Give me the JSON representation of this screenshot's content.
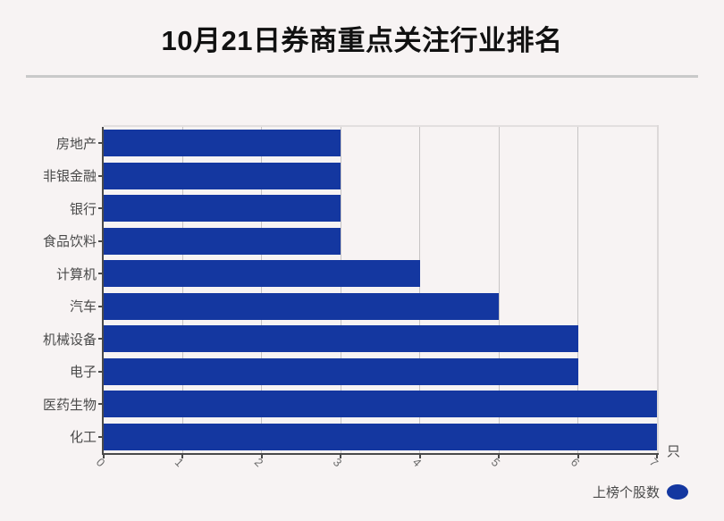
{
  "page": {
    "title": "10月21日券商重点关注行业排名",
    "background": "#f7f3f3"
  },
  "chart_data": {
    "type": "bar",
    "orientation": "horizontal",
    "title": "10月21日券商重点关注行业排名",
    "categories": [
      "房地产",
      "非银金融",
      "银行",
      "食品饮料",
      "计算机",
      "汽车",
      "机械设备",
      "电子",
      "医药生物",
      "化工"
    ],
    "series": [
      {
        "name": "上榜个股数",
        "values": [
          3,
          3,
          3,
          3,
          4,
          5,
          6,
          6,
          7,
          7
        ]
      }
    ],
    "xlabel": "",
    "ylabel": "",
    "unit_label": "只",
    "xlim": [
      0,
      7
    ],
    "xticks": [
      0,
      1,
      2,
      3,
      4,
      5,
      6,
      7
    ],
    "grid": true,
    "legend_position": "bottom-right",
    "bar_color": "#1437a0",
    "axis_color": "#4a4a4a",
    "gridline_color": "#c7c4c4"
  },
  "legend": {
    "label": "上榜个股数"
  },
  "axis": {
    "unit_label": "只"
  }
}
